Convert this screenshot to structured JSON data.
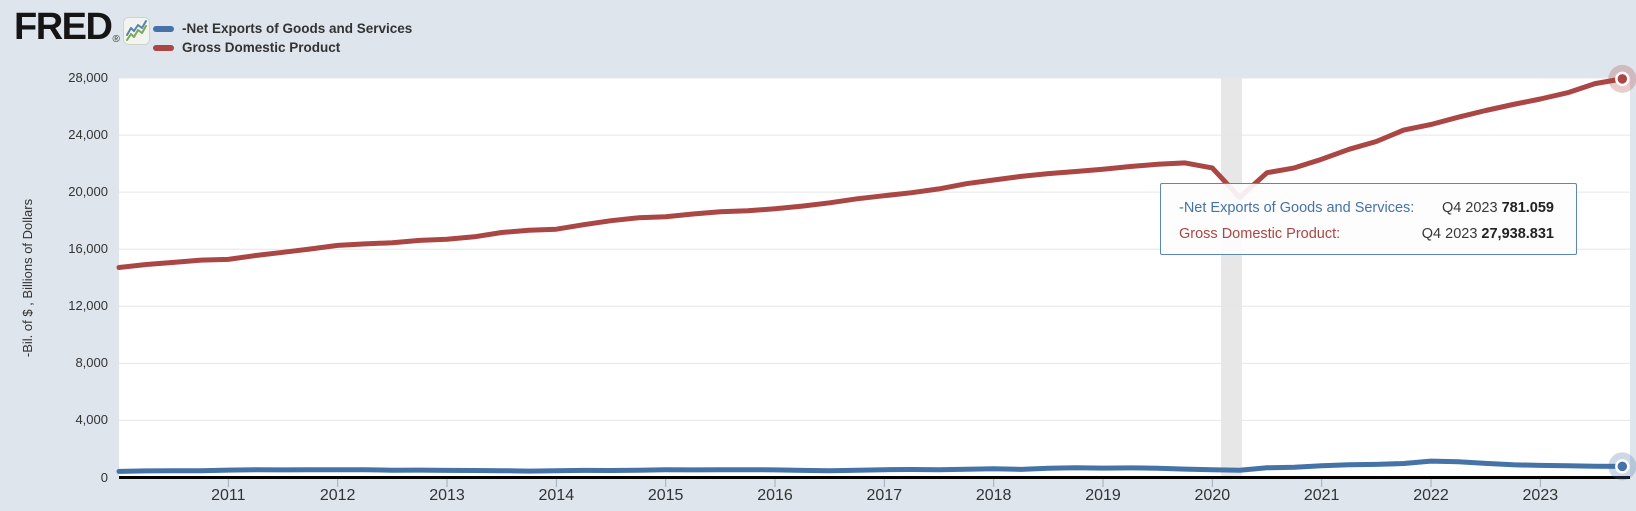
{
  "header": {
    "logo_text": "FRED",
    "registered_mark": "®",
    "logo_icon": "line-chart-sparkline-icon"
  },
  "legend": {
    "items": [
      {
        "label": "-Net Exports of Goods and Services",
        "color": "#4572a7"
      },
      {
        "label": "Gross Domestic Product",
        "color": "#aa4643"
      }
    ]
  },
  "tooltip": {
    "border_color": "#5d87b3",
    "rows": [
      {
        "label": "-Net Exports of Goods and Services:",
        "period": "Q4 2023",
        "value": "781.059",
        "color": "#4572a7"
      },
      {
        "label": "Gross Domestic Product:",
        "period": "Q4 2023",
        "value": "27,938.831",
        "color": "#aa4643"
      }
    ]
  },
  "colors": {
    "background": "#dee5ec",
    "plot_background": "#ffffff",
    "gridline": "#e6e6e6",
    "axis_line": "#000000",
    "tick_mark": "#9fadba",
    "recession_band": "#e7e7e7",
    "series_blue": "#4572a7",
    "series_red": "#aa4643"
  },
  "chart_data": {
    "type": "line",
    "title": "",
    "xlabel": "",
    "ylabel": "-Bil. of $ , Billions of Dollars",
    "ylim": [
      0,
      28000
    ],
    "yticks": [
      0,
      4000,
      8000,
      12000,
      16000,
      20000,
      24000,
      28000
    ],
    "ytick_labels": [
      "0",
      "4,000",
      "8,000",
      "12,000",
      "16,000",
      "20,000",
      "24,000",
      "28,000"
    ],
    "x_start": 2010.0,
    "x_step": 0.25,
    "x_end": 2023.75,
    "x_unit": "quarterly (decimal years)",
    "xtick_years": [
      2011,
      2012,
      2013,
      2014,
      2015,
      2016,
      2017,
      2018,
      2019,
      2020,
      2021,
      2022,
      2023
    ],
    "grid": true,
    "legend_position": "top-left",
    "recession_band": {
      "start": 2020.08,
      "end": 2020.27
    },
    "hovered_period": "Q4 2023",
    "series": [
      {
        "name": "-Net Exports of Goods and Services",
        "color": "#4572a7",
        "last_point": {
          "period": "Q4 2023",
          "value": 781.059
        },
        "values": [
          430,
          460,
          480,
          470,
          520,
          550,
          530,
          540,
          550,
          540,
          510,
          520,
          500,
          490,
          480,
          450,
          480,
          500,
          490,
          510,
          540,
          530,
          540,
          550,
          530,
          500,
          480,
          510,
          550,
          560,
          540,
          580,
          620,
          570,
          650,
          690,
          660,
          670,
          650,
          590,
          540,
          510,
          680,
          720,
          820,
          890,
          920,
          980,
          1150,
          1110,
          990,
          890,
          850,
          820,
          790,
          781.059
        ]
      },
      {
        "name": "Gross Domestic Product",
        "color": "#aa4643",
        "last_point": {
          "period": "Q4 2023",
          "value": 27938.831
        },
        "values": [
          14721,
          14926,
          15079,
          15240,
          15285,
          15562,
          15784,
          16013,
          16269,
          16374,
          16454,
          16621,
          16700,
          16870,
          17170,
          17335,
          17404,
          17720,
          18000,
          18200,
          18280,
          18470,
          18620,
          18700,
          18830,
          19020,
          19250,
          19530,
          19750,
          19960,
          20230,
          20590,
          20850,
          21100,
          21300,
          21450,
          21600,
          21800,
          21950,
          22050,
          21700,
          19630,
          21360,
          21700,
          22310,
          23000,
          23550,
          24350,
          24740,
          25250,
          25720,
          26140,
          26530,
          26970,
          27610,
          27938.831
        ]
      }
    ]
  }
}
